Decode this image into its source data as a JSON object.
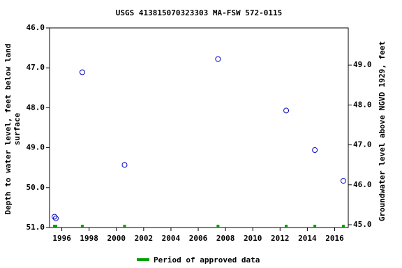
{
  "chart_data": {
    "type": "scatter",
    "title": "USGS 413815070323303 MA-FSW  572-0115",
    "ylabel": [
      "Depth to water level, feet below land",
      "surface"
    ],
    "y2label": "Groundwater level above NGVD 1929, feet",
    "xlim": [
      1995.1,
      2017.0
    ],
    "xticks": [
      1996,
      1998,
      2000,
      2002,
      2004,
      2006,
      2008,
      2010,
      2012,
      2014,
      2016
    ],
    "ylim": [
      46.0,
      51.0
    ],
    "yinverted": true,
    "yticks": [
      {
        "value": 46.0,
        "label": "46.0"
      },
      {
        "value": 47.0,
        "label": "47.0"
      },
      {
        "value": 48.0,
        "label": "48.0"
      },
      {
        "value": 49.0,
        "label": "49.0"
      },
      {
        "value": 50.0,
        "label": "50.0"
      },
      {
        "value": 51.0,
        "label": "51.0"
      }
    ],
    "y2lim": [
      49.93,
      44.93
    ],
    "y2ticks": [
      {
        "value": 45.0,
        "label": "45.0"
      },
      {
        "value": 46.0,
        "label": "46.0"
      },
      {
        "value": 47.0,
        "label": "47.0"
      },
      {
        "value": 48.0,
        "label": "48.0"
      },
      {
        "value": 49.0,
        "label": "49.0"
      }
    ],
    "series": [
      {
        "color": "#0000cc",
        "x": [
          1995.46,
          1995.56,
          1997.5,
          2000.6,
          2007.45,
          2012.45,
          2014.55,
          2016.64
        ],
        "values": [
          50.73,
          50.77,
          47.11,
          49.43,
          46.78,
          48.07,
          49.06,
          49.83
        ]
      }
    ],
    "approved": {
      "name": "Period of approved data",
      "color": "#00a000",
      "x": [
        1995.46,
        1995.56,
        1997.5,
        2000.6,
        2007.45,
        2012.45,
        2014.55,
        2016.64
      ]
    }
  }
}
